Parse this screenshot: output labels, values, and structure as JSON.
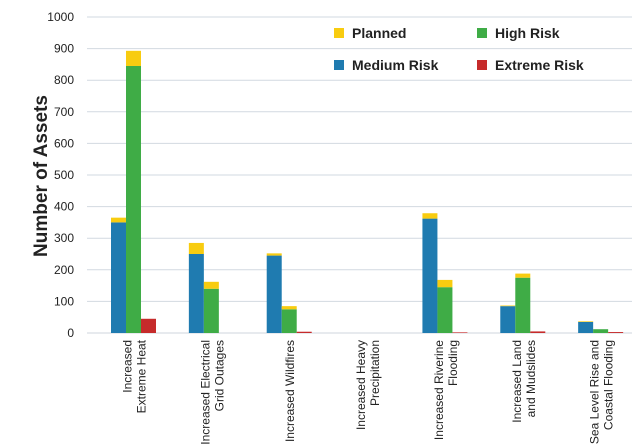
{
  "chart_data": {
    "type": "bar",
    "stacked_segment": "Planned",
    "ylabel": "Number of Assets",
    "ylim": [
      0,
      1000
    ],
    "yticks": [
      0,
      100,
      200,
      300,
      400,
      500,
      600,
      700,
      800,
      900,
      1000
    ],
    "grid": "horizontal",
    "legend_position": "top-right",
    "categories": [
      [
        "Increased",
        "Extreme Heat"
      ],
      [
        "Increased Electrical",
        "Grid Outages"
      ],
      [
        "Increased Wildfires"
      ],
      [
        "Increased Heavy",
        "Precipitation"
      ],
      [
        "Increased Riverine",
        "Flooding"
      ],
      [
        "Increased Land",
        "and Mudslides"
      ],
      [
        "Sea Level Rise and",
        "Coastal Flooding"
      ]
    ],
    "series": [
      {
        "name": "Medium Risk",
        "color": "#1f7bb0",
        "values": [
          350,
          250,
          245,
          0,
          362,
          85,
          35
        ]
      },
      {
        "name": "High Risk",
        "color": "#3fac46",
        "values": [
          845,
          140,
          75,
          0,
          145,
          175,
          12
        ]
      },
      {
        "name": "Extreme Risk",
        "color": "#c62b2b",
        "values": [
          45,
          0,
          4,
          0,
          2,
          5,
          3
        ]
      }
    ],
    "planned": {
      "name": "Planned",
      "color": "#f8cc10",
      "values": [
        [
          15,
          48,
          0
        ],
        [
          35,
          22,
          0
        ],
        [
          7,
          10,
          0
        ],
        [
          0,
          0,
          0
        ],
        [
          17,
          23,
          0
        ],
        [
          2,
          13,
          0
        ],
        [
          2,
          0,
          0
        ]
      ]
    },
    "legend": [
      {
        "name": "Planned",
        "color": "#f8cc10"
      },
      {
        "name": "High Risk",
        "color": "#3fac46"
      },
      {
        "name": "Medium Risk",
        "color": "#1f7bb0"
      },
      {
        "name": "Extreme Risk",
        "color": "#c62b2b"
      }
    ]
  }
}
